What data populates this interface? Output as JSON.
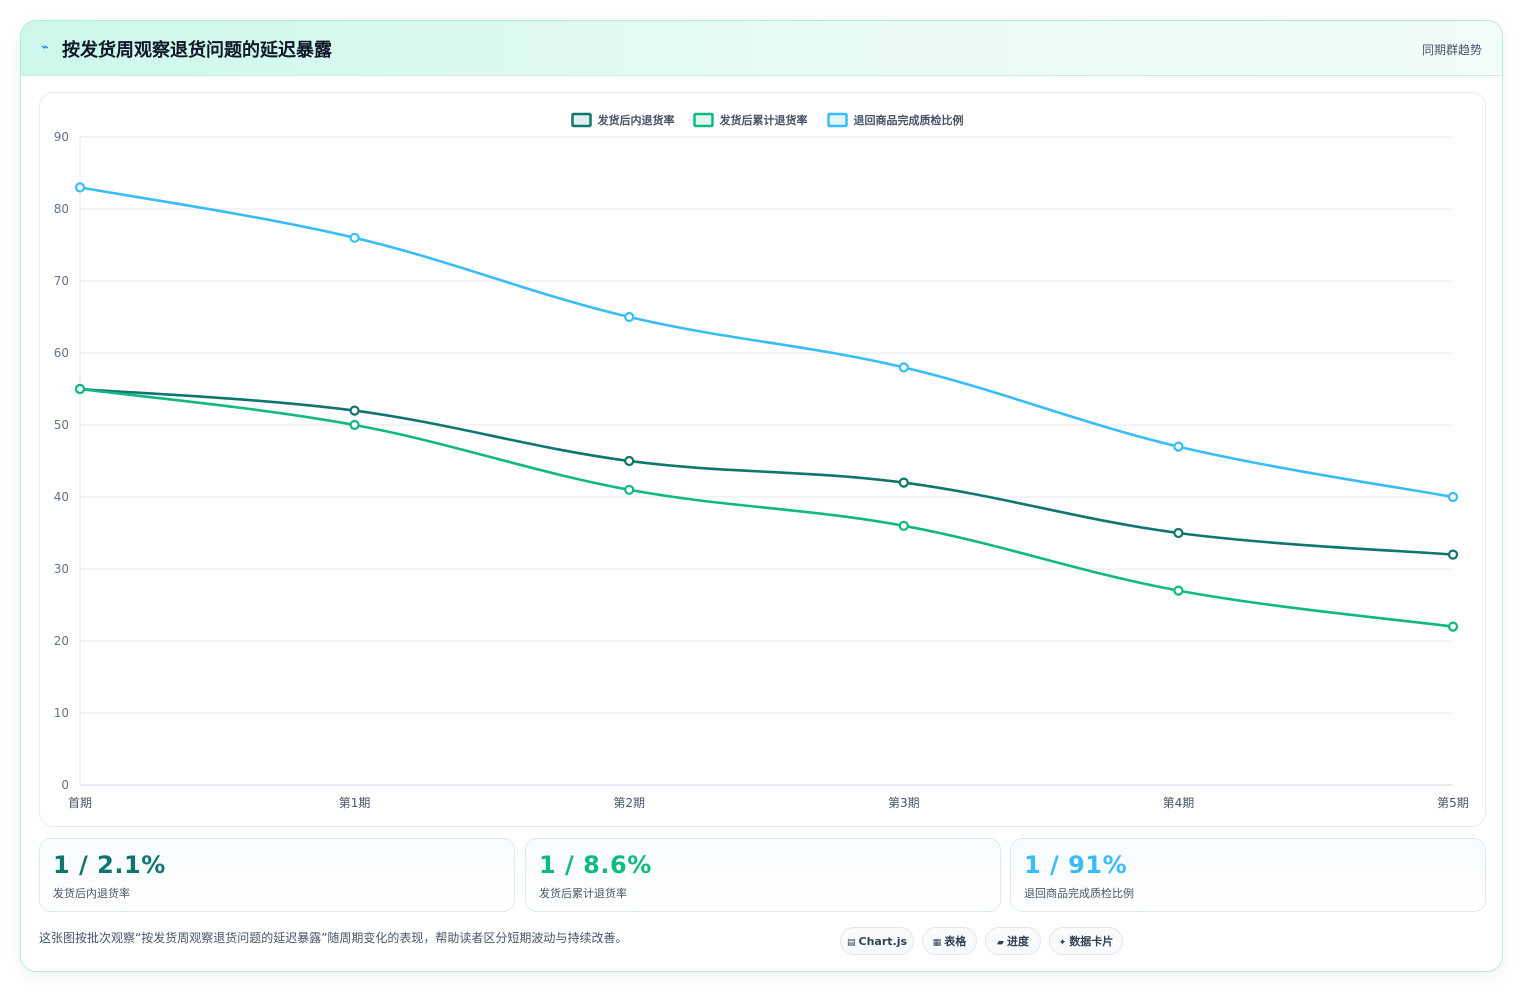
{
  "header": {
    "icon": "pulse-icon",
    "title": "按发货周观察退货问题的延迟暴露",
    "right_label": "同期群趋势"
  },
  "chart_data": {
    "type": "line",
    "categories": [
      "首期",
      "第1期",
      "第2期",
      "第3期",
      "第4期",
      "第5期"
    ],
    "series": [
      {
        "name": "发货后内退货率",
        "color": "#0f766e",
        "values": [
          55,
          52,
          45,
          42,
          35,
          32
        ]
      },
      {
        "name": "发货后累计退货率",
        "color": "#10b981",
        "values": [
          55,
          50,
          41,
          36,
          27,
          22
        ]
      },
      {
        "name": "退回商品完成质检比例",
        "color": "#38bdf8",
        "values": [
          83,
          76,
          65,
          58,
          47,
          40
        ]
      }
    ],
    "ylim": [
      0,
      90
    ],
    "yticks": [
      0,
      10,
      20,
      30,
      40,
      50,
      60,
      70,
      80,
      90
    ],
    "grid": true,
    "legend": "top-center",
    "title": "",
    "xlabel": "",
    "ylabel": ""
  },
  "stats": [
    {
      "value": "1 / 2.1%",
      "label": "发货后内退货率",
      "color": "#0f766e"
    },
    {
      "value": "1 / 8.6%",
      "label": "发货后累计退货率",
      "color": "#10b981"
    },
    {
      "value": "1 / 91%",
      "label": "退回商品完成质检比例",
      "color": "#38bdf8"
    }
  ],
  "caption": "这张图按批次观察“按发货周观察退货问题的延迟暴露”随周期变化的表现，帮助读者区分短期波动与持续改善。",
  "chips": [
    {
      "icon": "chart-icon",
      "glyph": "▤",
      "label": "Chart.js"
    },
    {
      "icon": "table-icon",
      "glyph": "▦",
      "label": "表格"
    },
    {
      "icon": "progress-icon",
      "glyph": "▰",
      "label": "进度"
    },
    {
      "icon": "sparkle-icon",
      "glyph": "✦",
      "label": "数据卡片"
    }
  ]
}
